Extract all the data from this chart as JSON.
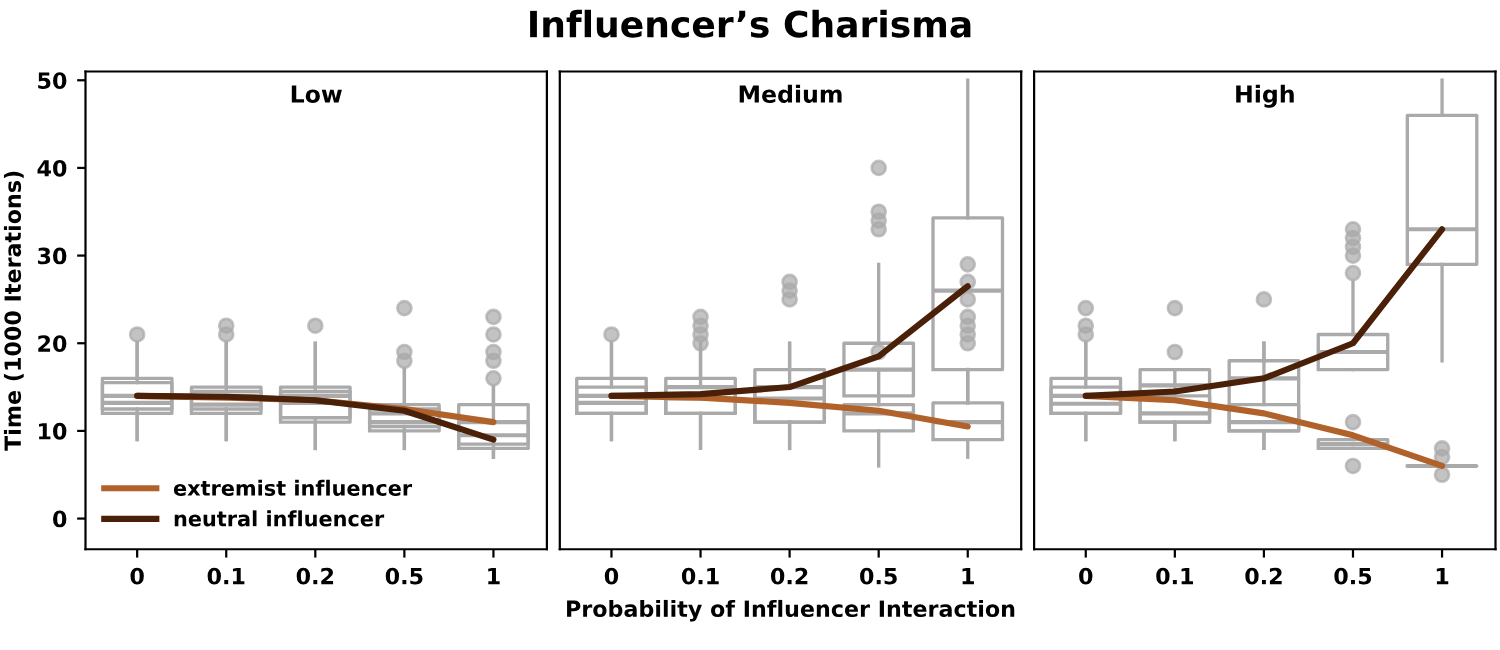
{
  "chart_data": [
    {
      "type": "box",
      "title": "Low",
      "annotations": [
        "Influencer’s Charisma"
      ],
      "ylabel": "Time (1000 Iterations)",
      "categories": [
        "0",
        "0.1",
        "0.2",
        "0.5",
        "1"
      ],
      "ylim": [
        -3.5,
        51
      ],
      "yticks": [
        0,
        10,
        20,
        30,
        40,
        50
      ],
      "legend": "bottom left",
      "series": [
        {
          "color": "#aaaaaa",
          "boxes": [
            {
              "low": 9,
              "q1": 12,
              "median": 14,
              "q3": 16,
              "high": 20,
              "outliers": [
                21
              ]
            },
            {
              "low": 9,
              "q1": 12,
              "median": 14,
              "q3": 15,
              "high": 20,
              "outliers": [
                21,
                22
              ]
            },
            {
              "low": 8,
              "q1": 11,
              "median": 14,
              "q3": 15,
              "high": 20,
              "outliers": [
                22
              ]
            },
            {
              "low": 8,
              "q1": 10,
              "median": 12,
              "q3": 13,
              "high": 17,
              "outliers": [
                18,
                19,
                24
              ]
            },
            {
              "low": 7,
              "q1": 8,
              "median": 11,
              "q3": 13,
              "high": 15,
              "outliers": [
                16,
                18,
                19,
                21,
                23
              ]
            }
          ]
        },
        {
          "color": "#aaaaaa",
          "boxes": [
            {
              "low": 9,
              "q1": 12.5,
              "median": 13.2,
              "q3": 15.5,
              "high": 20
            },
            {
              "low": 9,
              "q1": 12.5,
              "median": 13,
              "q3": 14.5,
              "high": 20
            },
            {
              "low": 8,
              "q1": 11.5,
              "median": 13.2,
              "q3": 14.5,
              "high": 20
            },
            {
              "low": 8,
              "q1": 10.5,
              "median": 11,
              "q3": 12.5,
              "high": 17
            },
            {
              "low": 7,
              "q1": 8.5,
              "median": 9.5,
              "q3": 11,
              "high": 15
            }
          ]
        },
        {
          "type": "line",
          "name": "extremist influencer",
          "color": "#b0622a",
          "values": [
            14,
            13.8,
            13.5,
            12.5,
            11
          ]
        },
        {
          "type": "line",
          "name": "neutral influencer",
          "color": "#4a2008",
          "values": [
            14,
            13.9,
            13.5,
            12.3,
            9
          ]
        }
      ]
    },
    {
      "type": "box",
      "title": "Medium",
      "xlabel": "Probability of Influencer Interaction",
      "categories": [
        "0",
        "0.1",
        "0.2",
        "0.5",
        "1"
      ],
      "ylim": [
        -3.5,
        51
      ],
      "yticks": [
        0,
        10,
        20,
        30,
        40,
        50
      ],
      "tick_labels": "x",
      "series": [
        {
          "color": "#aaaaaa",
          "boxes": [
            {
              "low": 9,
              "q1": 12,
              "median": 14,
              "q3": 16,
              "high": 20,
              "outliers": [
                21
              ]
            },
            {
              "low": 8,
              "q1": 12,
              "median": 15,
              "q3": 16,
              "high": 20,
              "outliers": [
                21,
                22,
                23
              ]
            },
            {
              "low": 8,
              "q1": 11,
              "median": 15,
              "q3": 17,
              "high": 20,
              "outliers": [
                25,
                26,
                27
              ]
            },
            {
              "low": 13,
              "q1": 14,
              "median": 17,
              "q3": 20,
              "high": 29,
              "outliers": [
                33,
                34,
                35,
                40
              ]
            },
            {
              "low": 13.2,
              "q1": 17,
              "median": 26,
              "q3": 34.3,
              "high": 50
            }
          ]
        },
        {
          "color": "#aaaaaa",
          "boxes": [
            {
              "low": 9,
              "q1": 12,
              "median": 13.2,
              "q3": 15,
              "high": 20
            },
            {
              "low": 8,
              "q1": 12,
              "median": 13.7,
              "q3": 15,
              "high": 20,
              "outliers": [
                20
              ]
            },
            {
              "low": 8,
              "q1": 11,
              "median": 13.7,
              "q3": 15,
              "high": 20
            },
            {
              "low": 6,
              "q1": 10,
              "median": 12,
              "q3": 13,
              "high": 17,
              "outliers": [
                19
              ]
            },
            {
              "low": 7,
              "q1": 9,
              "median": 11,
              "q3": 13.2,
              "high": 17,
              "outliers": [
                20,
                21,
                22,
                23,
                25,
                27,
                29
              ]
            }
          ]
        },
        {
          "type": "line",
          "color": "#b0622a",
          "values": [
            14,
            13.8,
            13.2,
            12.3,
            10.5
          ]
        },
        {
          "type": "line",
          "color": "#4a2008",
          "values": [
            14,
            14.2,
            15,
            18.5,
            26.5
          ]
        }
      ]
    },
    {
      "type": "box",
      "title": "High",
      "categories": [
        "0",
        "0.1",
        "0.2",
        "0.5",
        "1"
      ],
      "ylim": [
        -3.5,
        51
      ],
      "yticks": [
        0,
        10,
        20,
        30,
        40,
        50
      ],
      "tick_labels": "x",
      "series": [
        {
          "color": "#aaaaaa",
          "boxes": [
            {
              "low": 9,
              "q1": 12,
              "median": 14,
              "q3": 16,
              "high": 20,
              "outliers": [
                21,
                22,
                24
              ]
            },
            {
              "low": 9,
              "q1": 11,
              "median": 15.2,
              "q3": 17,
              "high": 17,
              "outliers": [
                19,
                24
              ]
            },
            {
              "low": 8,
              "q1": 10,
              "median": 16,
              "q3": 18,
              "high": 20,
              "outliers": [
                25
              ]
            },
            {
              "low": 17,
              "q1": 17,
              "median": 19,
              "q3": 21,
              "high": 27,
              "outliers": [
                28,
                30,
                31,
                32,
                33
              ]
            },
            {
              "low": 18,
              "q1": 29,
              "median": 33,
              "q3": 46,
              "high": 50
            }
          ]
        },
        {
          "color": "#aaaaaa",
          "boxes": [
            {
              "low": 9,
              "q1": 12,
              "median": 13.1,
              "q3": 15,
              "high": 20
            },
            {
              "low": 9,
              "q1": 11,
              "median": 12,
              "q3": 14,
              "high": 17
            },
            {
              "low": 8,
              "q1": 10,
              "median": 11,
              "q3": 13,
              "high": 20
            },
            {
              "low": 8,
              "q1": 8,
              "median": 8.5,
              "q3": 9,
              "high": 9,
              "outliers": [
                11,
                6
              ]
            },
            {
              "low": 6,
              "q1": 6,
              "median": 6,
              "q3": 6,
              "high": 6,
              "outliers": [
                5,
                7,
                8
              ]
            }
          ]
        },
        {
          "type": "line",
          "color": "#b0622a",
          "values": [
            14,
            13.5,
            12,
            9.5,
            6
          ]
        },
        {
          "type": "line",
          "color": "#4a2008",
          "values": [
            14,
            14.5,
            16,
            20,
            33
          ]
        }
      ]
    }
  ]
}
